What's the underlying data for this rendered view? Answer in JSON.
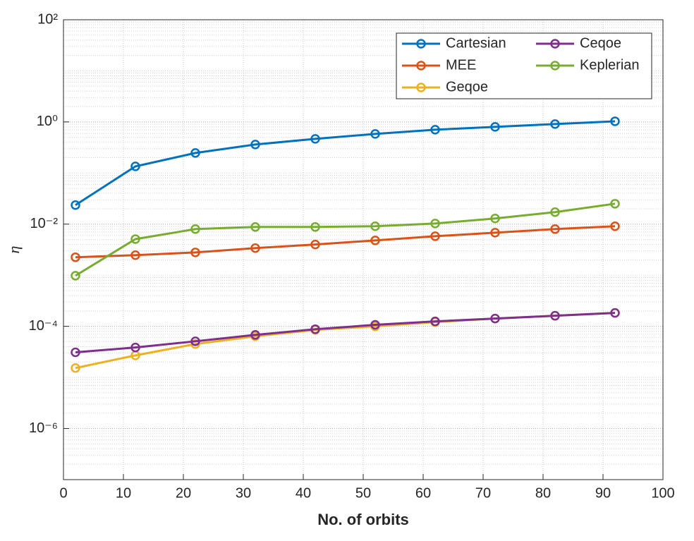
{
  "chart_data": {
    "type": "line",
    "xlabel": "No. of orbits",
    "ylabel": "η",
    "x": [
      2,
      12,
      22,
      32,
      42,
      52,
      62,
      72,
      82,
      92
    ],
    "series": [
      {
        "name": "Cartesian",
        "color": "#0072BD",
        "values": [
          0.0236,
          0.135,
          0.247,
          0.362,
          0.467,
          0.583,
          0.705,
          0.8,
          0.91,
          1.03
        ]
      },
      {
        "name": "MEE",
        "color": "#D95319",
        "values": [
          0.00225,
          0.00247,
          0.0028,
          0.0034,
          0.004,
          0.0048,
          0.0058,
          0.0068,
          0.008,
          0.0091
        ]
      },
      {
        "name": "Geqoe",
        "color": "#EDB120",
        "values": [
          1.53e-05,
          2.7e-05,
          4.5e-05,
          6.4e-05,
          8.5e-05,
          0.0001,
          0.000121,
          0.000142,
          0.000161,
          0.000183
        ]
      },
      {
        "name": "Ceqoe",
        "color": "#7E2F8E",
        "values": [
          3.1e-05,
          3.86e-05,
          5.1e-05,
          6.8e-05,
          8.8e-05,
          0.000107,
          0.000125,
          0.000142,
          0.000161,
          0.000183
        ]
      },
      {
        "name": "Keplerian",
        "color": "#77AC30",
        "values": [
          0.00098,
          0.0051,
          0.008,
          0.0088,
          0.0088,
          0.0091,
          0.0103,
          0.0129,
          0.0172,
          0.0251
        ]
      }
    ],
    "xlim": [
      0,
      100
    ],
    "xticks": [
      0,
      10,
      20,
      30,
      40,
      50,
      60,
      70,
      80,
      90,
      100
    ],
    "ylim": [
      1e-07,
      100
    ],
    "log_y": true,
    "yticks": [
      {
        "value": 1e-06,
        "label": "10⁻⁶"
      },
      {
        "value": 0.0001,
        "label": "10⁻⁴"
      },
      {
        "value": 0.01,
        "label": "10⁻²"
      },
      {
        "value": 1,
        "label": "10⁰"
      },
      {
        "value": 100,
        "label": "10²"
      }
    ],
    "grid": true,
    "minor_grid": true,
    "legend_position": "upper right",
    "legend_columns": 2
  }
}
